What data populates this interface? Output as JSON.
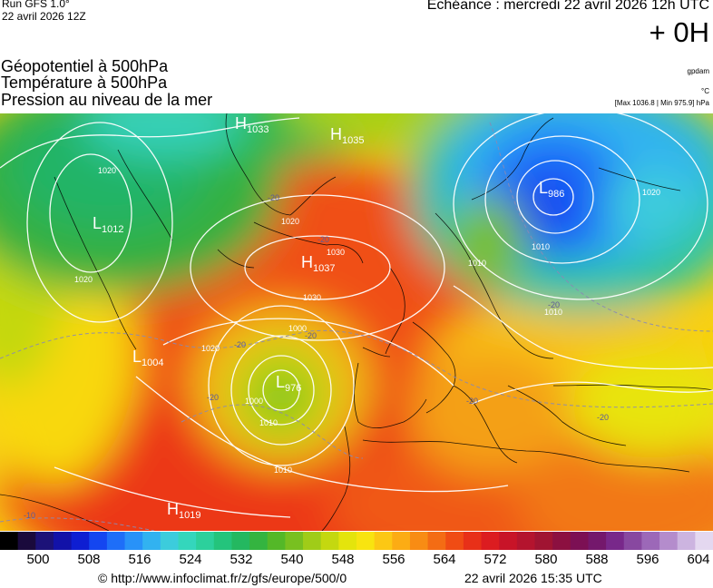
{
  "header": {
    "run": "Run GFS 1.0°",
    "run_time": "22 avril 2026 12Z",
    "validity": "Echéance : mercredi 22 avril 2026 12h UTC",
    "lead_time": "+ 0H"
  },
  "titles": {
    "line1": "Géopotentiel à 500hPa",
    "line2": "Température à 500hPa",
    "line3": "Pression au niveau de la mer",
    "unit_geopotential": "gpdam",
    "unit_temperature": "°C",
    "pressure_range": "[Max 1036.8 | Min 975.9] hPa"
  },
  "pressure_centers": [
    {
      "type": "H",
      "value": "1033"
    },
    {
      "type": "H",
      "value": "1035"
    },
    {
      "type": "L",
      "value": "1012"
    },
    {
      "type": "L",
      "value": "986"
    },
    {
      "type": "H",
      "value": "1037"
    },
    {
      "type": "L",
      "value": "1004"
    },
    {
      "type": "L",
      "value": "976"
    },
    {
      "type": "H",
      "value": "1019"
    }
  ],
  "isobar_labels": [
    "1020",
    "1020",
    "1020",
    "1030",
    "1020",
    "1030",
    "1000",
    "1010",
    "1010",
    "1000",
    "1010",
    "1010",
    "1010",
    "1020"
  ],
  "temperature_labels": [
    "-20",
    "-20",
    "-20",
    "-20",
    "-20",
    "-20",
    "-20",
    "-20",
    "-10"
  ],
  "colorscale": {
    "colors": [
      "#000000",
      "#1a0a3c",
      "#1c1278",
      "#1212a8",
      "#0e1ed2",
      "#1446f0",
      "#1e6ef8",
      "#2892f8",
      "#32b2f0",
      "#3cccdc",
      "#34d6bc",
      "#2cd09c",
      "#24c47c",
      "#24b860",
      "#34b440",
      "#54b828",
      "#78c020",
      "#a0cc18",
      "#c4d810",
      "#e4e40c",
      "#f8e410",
      "#fcc814",
      "#fcac14",
      "#f88c14",
      "#f46c14",
      "#f04c14",
      "#e83018",
      "#dc1c20",
      "#c81428",
      "#b4142e",
      "#a01432",
      "#8c1040",
      "#7c1054",
      "#74186c",
      "#78288a",
      "#8848a0",
      "#9c68b8",
      "#b48ccc",
      "#ccb4e0",
      "#e4d8f0"
    ],
    "tick_labels": [
      "500",
      "508",
      "516",
      "524",
      "532",
      "540",
      "548",
      "556",
      "564",
      "572",
      "580",
      "588",
      "596",
      "604"
    ]
  },
  "footer": {
    "credit": "© http://www.infoclimat.fr/z/gfs/europe/500/0",
    "generated": "22 avril 2026 15:35 UTC"
  }
}
